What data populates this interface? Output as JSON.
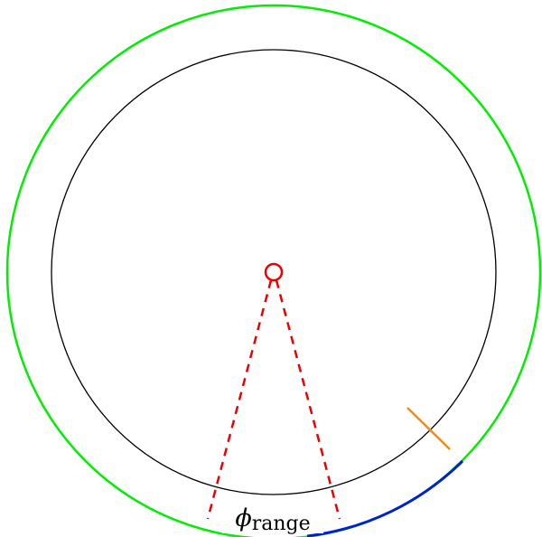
{
  "label": {
    "symbol": "ϕ",
    "subscript": "range"
  }
}
